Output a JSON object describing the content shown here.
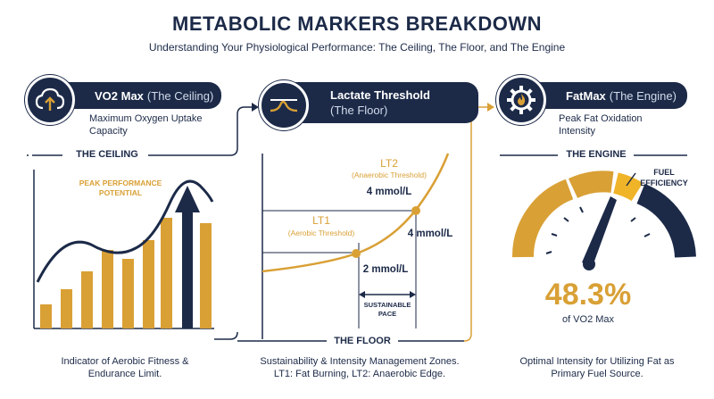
{
  "header": {
    "title": "METABOLIC MARKERS BREAKDOWN",
    "subtitle": "Understanding Your Physiological Performance: The Ceiling, The Floor, and The Engine"
  },
  "colors": {
    "navy": "#1c2a48",
    "gold": "#d9a035",
    "light_gold": "#f0b429"
  },
  "vo2": {
    "name": "VO2 Max",
    "paren": "(The Ceiling)",
    "description_line1": "Maximum Oxygen Uptake",
    "description_line2": "Capacity",
    "section_label": "THE CEILING",
    "annotation_line1": "PEAK PERFORMANCE",
    "annotation_line2": "POTENTIAL",
    "footer_line1": "Indicator of Aerobic Fitness &",
    "footer_line2": "Endurance Limit.",
    "icon": "cloud-upload-icon"
  },
  "lactate": {
    "name": "Lactate Threshold",
    "paren": "(The Floor)",
    "section_label": "THE FLOOR",
    "lt2_name": "LT2",
    "lt2_desc": "(Anaerobic Threshold)",
    "lt2_value": "4 mmol/L",
    "lt2_axis_value": "4 mmol/L",
    "lt1_name": "LT1",
    "lt1_desc": "(Aerobic Threshold)",
    "lt1_value": "2 mmol/L",
    "pace_line1": "SUSTAINABLE",
    "pace_line2": "PACE",
    "footer_line1": "Sustainability & Intensity Management Zones.",
    "footer_line2": "LT1: Fat Burning, LT2: Anaerobic Edge.",
    "icon": "wave-icon"
  },
  "fatmax": {
    "name": "FatMax",
    "paren": "(The Engine)",
    "description_line1": "Peak Fat Oxidation",
    "description_line2": "Intensity",
    "section_label": "THE ENGINE",
    "gauge_label_line1": "FUEL",
    "gauge_label_line2": "EFFICIENCY",
    "value": "48.3%",
    "value_caption": "of VO2 Max",
    "footer_line1": "Optimal Intensity for Utilizing Fat as",
    "footer_line2": "Primary Fuel Source.",
    "icon": "gear-flame-icon"
  }
}
